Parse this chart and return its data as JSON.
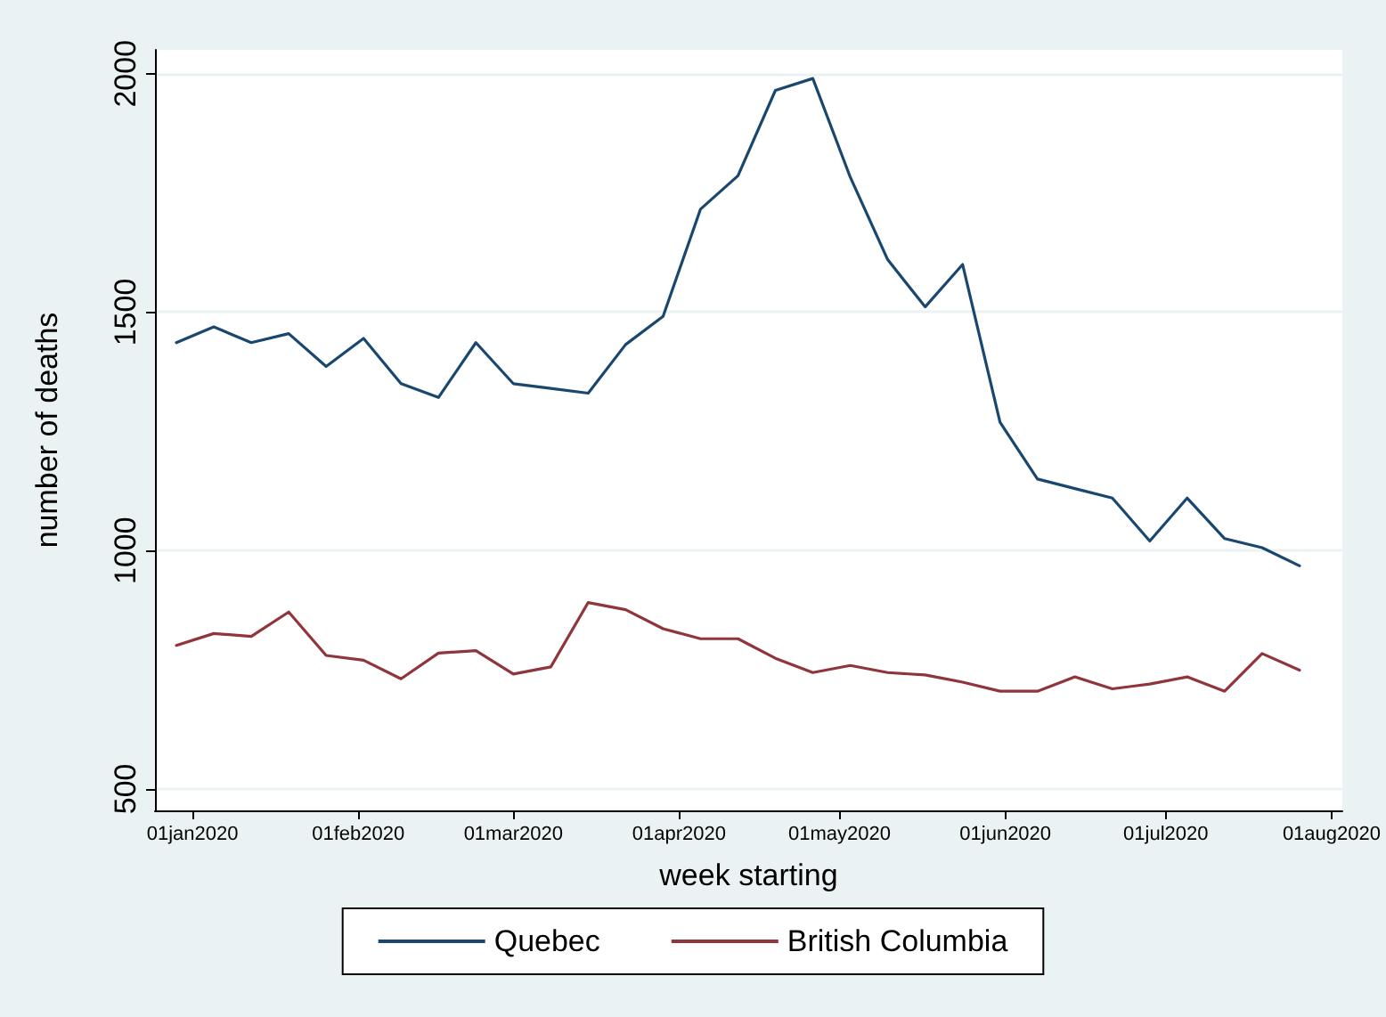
{
  "chart_data": {
    "type": "line",
    "xlabel": "week starting",
    "ylabel": "number of deaths",
    "x": [
      "2019-12-29",
      "2020-01-05",
      "2020-01-12",
      "2020-01-19",
      "2020-01-26",
      "2020-02-02",
      "2020-02-09",
      "2020-02-16",
      "2020-02-23",
      "2020-03-01",
      "2020-03-08",
      "2020-03-15",
      "2020-03-22",
      "2020-03-29",
      "2020-04-05",
      "2020-04-12",
      "2020-04-19",
      "2020-04-26",
      "2020-05-03",
      "2020-05-10",
      "2020-05-17",
      "2020-05-24",
      "2020-05-31",
      "2020-06-07",
      "2020-06-14",
      "2020-06-21",
      "2020-06-28",
      "2020-07-05",
      "2020-07-12",
      "2020-07-19",
      "2020-07-26"
    ],
    "series": [
      {
        "name": "Quebec",
        "color": "#1a476f",
        "values": [
          1436,
          1469,
          1436,
          1455,
          1386,
          1445,
          1350,
          1321,
          1436,
          1350,
          1340,
          1330,
          1432,
          1491,
          1716,
          1786,
          1965,
          1990,
          1783,
          1610,
          1511,
          1600,
          1269,
          1150,
          1130,
          1110,
          1020,
          1110,
          1025,
          1006,
          968
        ]
      },
      {
        "name": "British Columbia",
        "color": "#90353b",
        "values": [
          801,
          826,
          820,
          871,
          780,
          770,
          731,
          785,
          790,
          741,
          756,
          891,
          876,
          836,
          815,
          815,
          774,
          744,
          759,
          744,
          739,
          724,
          705,
          705,
          735,
          710,
          720,
          735,
          705,
          784,
          749
        ]
      }
    ],
    "xlim": [
      "2019-12-25",
      "2020-08-03"
    ],
    "xticks": [
      {
        "value": "2020-01-01",
        "label": "01jan2020"
      },
      {
        "value": "2020-02-01",
        "label": "01feb2020"
      },
      {
        "value": "2020-03-01",
        "label": "01mar2020"
      },
      {
        "value": "2020-04-01",
        "label": "01apr2020"
      },
      {
        "value": "2020-05-01",
        "label": "01may2020"
      },
      {
        "value": "2020-06-01",
        "label": "01jun2020"
      },
      {
        "value": "2020-07-01",
        "label": "01jul2020"
      },
      {
        "value": "2020-08-01",
        "label": "01aug2020"
      }
    ],
    "ylim": [
      455,
      2050
    ],
    "yticks": [
      500,
      1000,
      1500,
      2000
    ],
    "grid": "y",
    "legend": "bottom",
    "marker": "none",
    "line_style": "solid"
  }
}
